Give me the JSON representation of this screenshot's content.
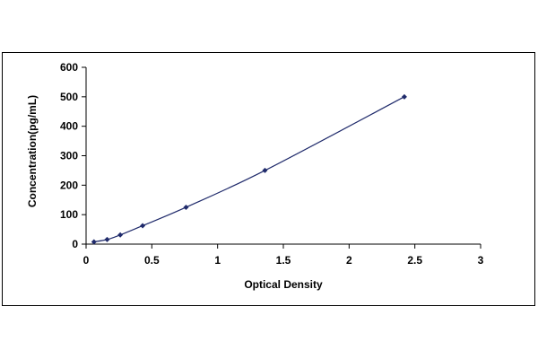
{
  "chart_data": {
    "type": "scatter",
    "xlabel": "Optical Density",
    "ylabel": "Concentration(pg/mL)",
    "xlim": [
      0,
      3
    ],
    "ylim": [
      0,
      600
    ],
    "x_ticks": [
      0,
      0.5,
      1,
      1.5,
      2,
      2.5,
      3
    ],
    "x_tick_labels": [
      "0",
      "0.5",
      "1",
      "1.5",
      "2",
      "2.5",
      "3"
    ],
    "y_ticks": [
      0,
      100,
      200,
      300,
      400,
      500,
      600
    ],
    "y_tick_labels": [
      "0",
      "100",
      "200",
      "300",
      "400",
      "500",
      "600"
    ],
    "grid": false,
    "legend": "none",
    "series": [
      {
        "x": [
          0.06,
          0.16,
          0.26,
          0.43,
          0.76,
          1.36,
          2.42
        ],
        "y": [
          7.8,
          15.6,
          31.2,
          62.5,
          125,
          250,
          500
        ],
        "trendline": true
      }
    ],
    "colors": {
      "points": "#1f2a6b",
      "line": "#1f2a6b",
      "axes": "#000000"
    }
  }
}
